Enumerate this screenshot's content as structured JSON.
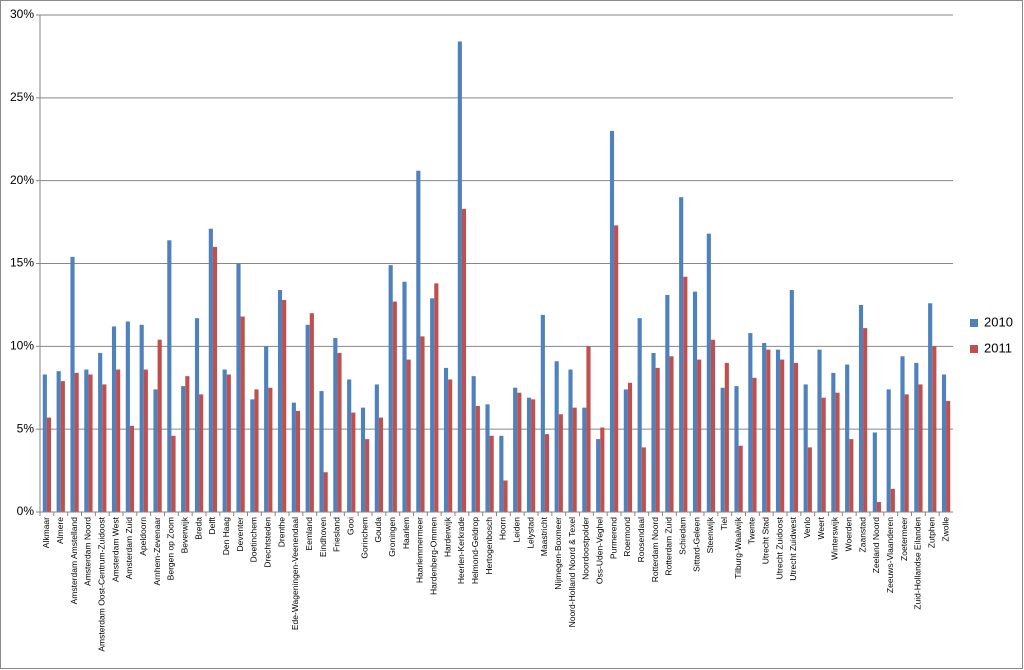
{
  "chart_data": {
    "type": "bar",
    "categories": [
      "Alkmaar",
      "Almere",
      "Amsterdam Amstelland",
      "Amsterdam Noord",
      "Amsterdam Oost-Centrum-Zuidoost",
      "Amsterdam West",
      "Amsterdam Zuid",
      "Apeldoorn",
      "Arnhem-Zevenaar",
      "Bergen op Zoom",
      "Beverwijk",
      "Breda",
      "Delft",
      "Den Haag",
      "Deventer",
      "Doetinchem",
      "Drechtsteden",
      "Drenthe",
      "Ede-Wageningen-Veenendaal",
      "Eemland",
      "Eindhoven",
      "Friesland",
      "Gooi",
      "Gorinchem",
      "Gouda",
      "Groningen",
      "Haarlem",
      "Haarlemmermeer",
      "Hardenberg-Ommen",
      "Harderwijk",
      "Heerlen-Kerkrade",
      "Helmond-Geldrop",
      "Hertogenbosch",
      "Hoorn",
      "Leiden",
      "Lelystad",
      "Maastricht",
      "Nijmegen-Boxmeer",
      "Noord-Holland Noord & Texel",
      "Noordoostpolder",
      "Oss-Uden-Veghel",
      "Purmerend",
      "Roermond",
      "Roosendaal",
      "Rotterdam Noord",
      "Rotterdam Zuid",
      "Schiedam",
      "Sittard-Geleen",
      "Steenwijk",
      "Tiel",
      "Tilburg-Waalwijk",
      "Twente",
      "Utrecht Stad",
      "Utrecht Zuidoost",
      "Utrecht Zuidwest",
      "Venlo",
      "Weert",
      "Winterswijk",
      "Woerden",
      "Zaanstad",
      "Zeeland Noord",
      "Zeeuws-Vlaanderen",
      "Zoetermeer",
      "Zuid-Hollandse Eilanden",
      "Zutphen",
      "Zwolle"
    ],
    "series": [
      {
        "name": "2010",
        "color": "#4f81bd",
        "values": [
          8.3,
          8.5,
          15.4,
          8.6,
          9.6,
          11.2,
          11.5,
          11.3,
          7.4,
          16.4,
          7.6,
          11.7,
          17.1,
          8.6,
          15.0,
          6.8,
          10.0,
          13.4,
          6.6,
          11.3,
          7.3,
          10.5,
          8.0,
          6.3,
          7.7,
          14.9,
          13.9,
          20.6,
          12.9,
          8.7,
          28.4,
          8.2,
          6.5,
          4.6,
          7.5,
          6.9,
          11.9,
          9.1,
          8.6,
          6.3,
          4.4,
          23.0,
          7.4,
          11.7,
          9.6,
          13.1,
          19.0,
          13.3,
          16.8,
          7.5,
          7.6,
          10.8,
          10.2,
          9.8,
          13.4,
          7.7,
          9.8,
          8.4,
          8.9,
          12.5,
          4.8,
          7.4,
          9.4,
          9.0,
          12.6,
          8.3
        ]
      },
      {
        "name": "2011",
        "color": "#c0504d",
        "values": [
          5.7,
          7.9,
          8.4,
          8.3,
          7.7,
          8.6,
          5.2,
          8.6,
          10.4,
          4.6,
          8.2,
          7.1,
          16.0,
          8.3,
          11.8,
          7.4,
          7.5,
          12.8,
          6.1,
          12.0,
          2.4,
          9.6,
          6.0,
          4.4,
          5.7,
          12.7,
          9.2,
          10.6,
          13.8,
          8.0,
          18.3,
          6.4,
          4.6,
          1.9,
          7.2,
          6.8,
          4.7,
          5.9,
          6.3,
          10.0,
          5.1,
          17.3,
          7.8,
          3.9,
          8.7,
          9.4,
          14.2,
          9.2,
          10.4,
          9.0,
          4.0,
          8.1,
          9.8,
          9.2,
          9.0,
          3.9,
          6.9,
          7.2,
          4.4,
          11.1,
          0.6,
          1.4,
          7.1,
          7.7,
          10.0,
          6.7
        ]
      }
    ],
    "ylim": [
      0,
      30
    ],
    "yticks": [
      {
        "value": 0,
        "label": "0%"
      },
      {
        "value": 5,
        "label": "5%"
      },
      {
        "value": 10,
        "label": "10%"
      },
      {
        "value": 15,
        "label": "15%"
      },
      {
        "value": 20,
        "label": "20%"
      },
      {
        "value": 25,
        "label": "25%"
      },
      {
        "value": 30,
        "label": "30%"
      }
    ],
    "grid": true,
    "legend": "right"
  }
}
